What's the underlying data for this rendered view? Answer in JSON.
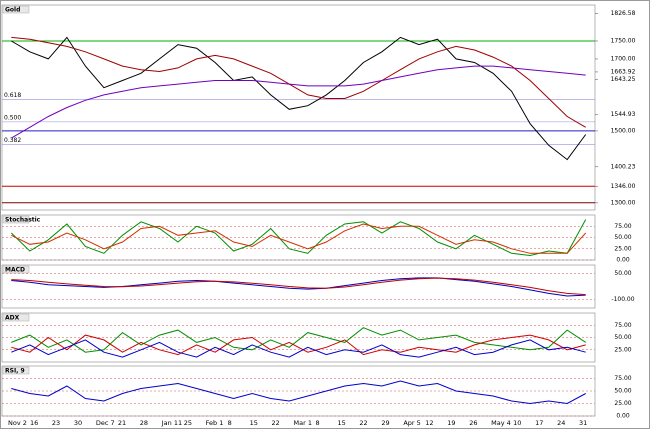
{
  "x_axis_labels": [
    "Nov 2",
    "16",
    "23",
    "30",
    "Dec 7",
    "21",
    "28",
    "Jan 11",
    "25",
    "Feb 1",
    "8",
    "15",
    "22",
    "Mar 1",
    "8",
    "15",
    "22",
    "29",
    "Apr 5",
    "12",
    "19",
    "26",
    "May 4",
    "10",
    "17",
    "24",
    "31"
  ],
  "chart_data": [
    {
      "type": "line",
      "title": "Gold",
      "ylim": [
        1280,
        1850
      ],
      "grid": false,
      "yticks": [
        {
          "value": 1826.58,
          "label": "1826.58"
        },
        {
          "value": 1750,
          "label": "1750.00"
        },
        {
          "value": 1700,
          "label": "1700.00"
        },
        {
          "value": 1663.92,
          "label": "1663.92"
        },
        {
          "value": 1643.25,
          "label": "1643.25"
        },
        {
          "value": 1544.93,
          "label": "1544.93"
        },
        {
          "value": 1500,
          "label": "1500.00"
        },
        {
          "value": 1400.23,
          "label": "1400.23"
        },
        {
          "value": 1346,
          "label": "1346.00"
        },
        {
          "value": 1300,
          "label": "1300.00"
        }
      ],
      "levels": [
        {
          "value": 1750,
          "color": "#00b000"
        },
        {
          "value": 1500,
          "color": "#2020c0"
        },
        {
          "value": 1346,
          "color": "#cc0000"
        },
        {
          "value": 1300,
          "color": "#800000"
        }
      ],
      "fib_labels": [
        {
          "value": 1587,
          "label": "0.618"
        },
        {
          "value": 1525,
          "label": "0.500"
        },
        {
          "value": 1462,
          "label": "0.382"
        }
      ],
      "series": [
        {
          "color": "#000000",
          "values": [
            1750,
            1720,
            1700,
            1760,
            1680,
            1620,
            1640,
            1660,
            1700,
            1740,
            1730,
            1690,
            1640,
            1650,
            1600,
            1560,
            1570,
            1600,
            1640,
            1690,
            1720,
            1760,
            1740,
            1755,
            1700,
            1690,
            1660,
            1610,
            1520,
            1460,
            1420,
            1490
          ]
        },
        {
          "color": "#a00000",
          "values": [
            1760,
            1755,
            1745,
            1735,
            1720,
            1700,
            1680,
            1670,
            1665,
            1675,
            1700,
            1710,
            1700,
            1680,
            1660,
            1630,
            1600,
            1590,
            1590,
            1610,
            1640,
            1670,
            1700,
            1720,
            1735,
            1725,
            1705,
            1680,
            1640,
            1590,
            1540,
            1510
          ]
        },
        {
          "color": "#7000c0",
          "values": [
            1480,
            1510,
            1540,
            1565,
            1585,
            1600,
            1610,
            1620,
            1625,
            1630,
            1635,
            1640,
            1640,
            1640,
            1635,
            1630,
            1625,
            1625,
            1625,
            1630,
            1640,
            1650,
            1660,
            1670,
            1675,
            1680,
            1680,
            1675,
            1670,
            1665,
            1660,
            1655
          ]
        }
      ]
    },
    {
      "type": "line",
      "title": "Stochastic",
      "ylim": [
        0,
        100
      ],
      "grid": true,
      "yticks": [
        {
          "value": 0,
          "label": "0.00"
        },
        {
          "value": 25,
          "label": "25.00"
        },
        {
          "value": 50,
          "label": "50.00"
        },
        {
          "value": 75,
          "label": "75.00"
        }
      ],
      "series": [
        {
          "color": "#009000",
          "values": [
            60,
            20,
            45,
            80,
            30,
            15,
            55,
            85,
            70,
            40,
            75,
            60,
            20,
            35,
            70,
            25,
            15,
            55,
            80,
            85,
            60,
            85,
            70,
            40,
            25,
            55,
            35,
            15,
            10,
            20,
            15,
            90
          ]
        },
        {
          "color": "#d03000",
          "values": [
            55,
            35,
            40,
            60,
            45,
            25,
            40,
            70,
            75,
            55,
            60,
            65,
            40,
            30,
            55,
            40,
            25,
            40,
            65,
            80,
            70,
            75,
            75,
            55,
            35,
            45,
            40,
            25,
            15,
            15,
            15,
            60
          ]
        }
      ]
    },
    {
      "type": "line",
      "title": "MACD",
      "ylim": [
        -150,
        100
      ],
      "grid": true,
      "yticks": [
        {
          "value": 50,
          "label": "50.00"
        },
        {
          "value": -100,
          "label": "-100.00"
        }
      ],
      "series": [
        {
          "color": "#0000c0",
          "values": [
            10,
            0,
            -15,
            -20,
            -25,
            -30,
            -25,
            -15,
            -5,
            5,
            10,
            5,
            -5,
            -15,
            -25,
            -35,
            -40,
            -35,
            -20,
            -5,
            10,
            20,
            25,
            25,
            15,
            5,
            -10,
            -25,
            -45,
            -65,
            -80,
            -75
          ]
        },
        {
          "color": "#c00000",
          "values": [
            15,
            10,
            0,
            -10,
            -18,
            -25,
            -26,
            -22,
            -14,
            -5,
            3,
            5,
            2,
            -6,
            -15,
            -25,
            -33,
            -35,
            -28,
            -15,
            0,
            12,
            20,
            24,
            20,
            12,
            0,
            -15,
            -30,
            -50,
            -65,
            -72
          ]
        }
      ]
    },
    {
      "type": "line",
      "title": "ADX",
      "ylim": [
        0,
        100
      ],
      "grid": true,
      "yticks": [
        {
          "value": 25,
          "label": "25.00"
        },
        {
          "value": 50,
          "label": "50.00"
        },
        {
          "value": 75,
          "label": "75.00"
        }
      ],
      "series": [
        {
          "color": "#009000",
          "values": [
            40,
            55,
            30,
            45,
            20,
            25,
            60,
            35,
            55,
            65,
            40,
            50,
            30,
            25,
            45,
            30,
            60,
            50,
            40,
            70,
            55,
            65,
            45,
            50,
            55,
            40,
            35,
            30,
            25,
            30,
            65,
            40
          ]
        },
        {
          "color": "#d00000",
          "values": [
            30,
            20,
            50,
            25,
            55,
            45,
            20,
            40,
            25,
            15,
            35,
            20,
            45,
            50,
            25,
            40,
            20,
            30,
            45,
            15,
            25,
            20,
            30,
            25,
            20,
            35,
            45,
            50,
            55,
            45,
            25,
            35
          ]
        },
        {
          "color": "#0000d0",
          "values": [
            20,
            35,
            15,
            30,
            45,
            20,
            10,
            25,
            40,
            20,
            10,
            30,
            15,
            35,
            20,
            10,
            30,
            15,
            25,
            20,
            35,
            15,
            10,
            20,
            30,
            15,
            20,
            35,
            45,
            25,
            30,
            20
          ]
        }
      ]
    },
    {
      "type": "line",
      "title": "RSI, 9",
      "ylim": [
        0,
        100
      ],
      "grid": true,
      "yticks": [
        {
          "value": 0,
          "label": "0.00"
        },
        {
          "value": 25,
          "label": "25.00"
        },
        {
          "value": 50,
          "label": "50.00"
        },
        {
          "value": 75,
          "label": "75.00"
        }
      ],
      "series": [
        {
          "color": "#0000d0",
          "values": [
            55,
            45,
            40,
            60,
            35,
            30,
            45,
            55,
            60,
            65,
            55,
            45,
            35,
            45,
            35,
            30,
            40,
            50,
            60,
            65,
            60,
            70,
            60,
            65,
            50,
            45,
            40,
            30,
            25,
            30,
            25,
            45
          ]
        }
      ]
    }
  ]
}
